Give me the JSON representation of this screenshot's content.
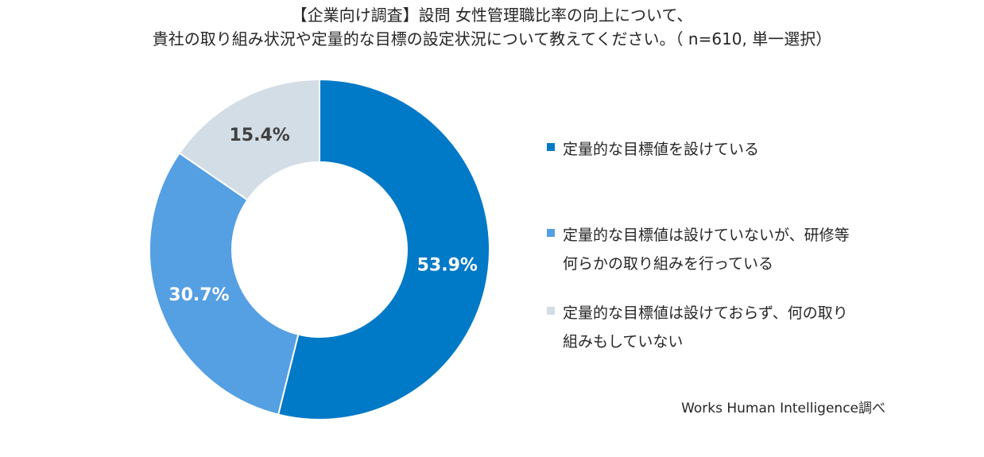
{
  "chart_data": {
    "type": "pie",
    "title_lines": [
      "【企業向け調査】設問 女性管理職比率の向上について、",
      "貴社の取り組み状況や定量的な目標の設定状況について教えてください。（ n=610, 単一選択）"
    ],
    "slices": [
      {
        "label_lines": [
          "定量的な目標値を設けている"
        ],
        "value": 53.9,
        "value_label": "53.9%",
        "color": "#0079C7",
        "label_color": "#ffffff"
      },
      {
        "label_lines": [
          "定量的な目標値は設けていないが、研修等",
          "何らかの取り組みを行っている"
        ],
        "value": 30.7,
        "value_label": "30.7%",
        "color": "#559FE3",
        "label_color": "#ffffff"
      },
      {
        "label_lines": [
          "定量的な目標値は設けておらず、何の取り",
          "組みもしていない"
        ],
        "value": 15.4,
        "value_label": "15.4%",
        "color": "#D3DDE6",
        "label_color": "#404040"
      }
    ],
    "legend_position": "right",
    "source": "Works Human Intelligence調べ"
  }
}
